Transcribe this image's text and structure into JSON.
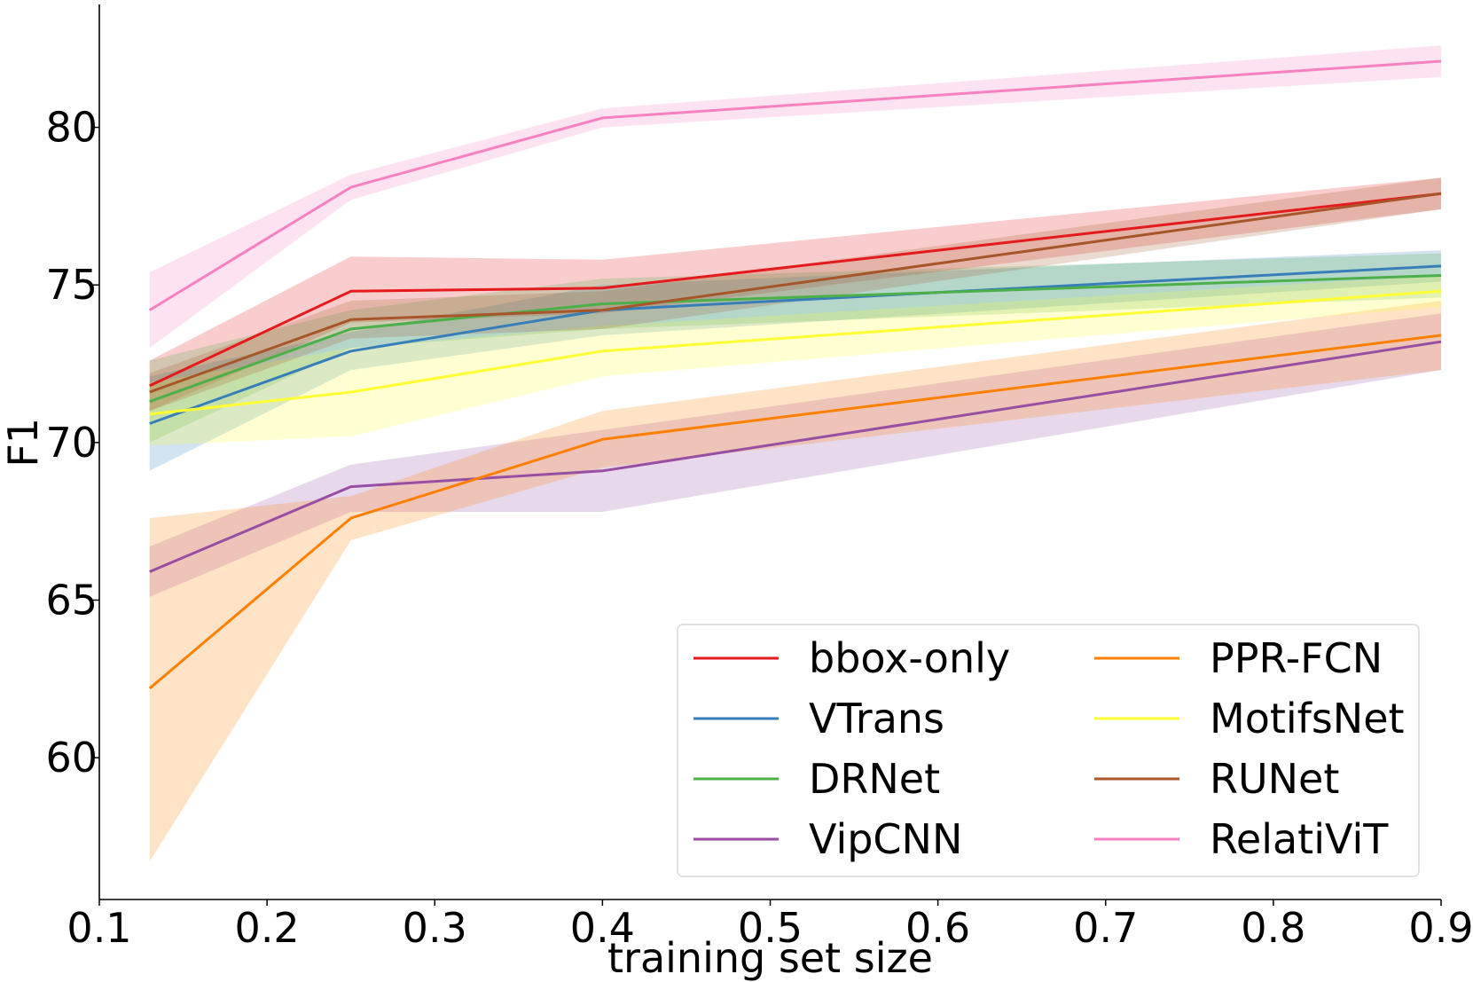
{
  "chart_data": {
    "type": "line",
    "title": "",
    "xlabel": "training set size",
    "ylabel": "F1",
    "xlim": [
      0.1,
      0.9
    ],
    "ylim": [
      55.5,
      83.9
    ],
    "x": [
      0.13,
      0.25,
      0.4,
      0.9
    ],
    "xticks": [
      {
        "value": 0.1,
        "label": "0.1"
      },
      {
        "value": 0.2,
        "label": "0.2"
      },
      {
        "value": 0.3,
        "label": "0.3"
      },
      {
        "value": 0.4,
        "label": "0.4"
      },
      {
        "value": 0.5,
        "label": "0.5"
      },
      {
        "value": 0.6,
        "label": "0.6"
      },
      {
        "value": 0.7,
        "label": "0.7"
      },
      {
        "value": 0.8,
        "label": "0.8"
      },
      {
        "value": 0.9,
        "label": "0.9"
      }
    ],
    "yticks": [
      {
        "value": 60,
        "label": "60"
      },
      {
        "value": 65,
        "label": "65"
      },
      {
        "value": 70,
        "label": "70"
      },
      {
        "value": 75,
        "label": "75"
      },
      {
        "value": 80,
        "label": "80"
      }
    ],
    "grid": false,
    "legend_position": "bottom-right",
    "legend_columns": 2,
    "series": [
      {
        "name": "bbox-only",
        "color": "#e41a1c",
        "values": [
          71.8,
          74.8,
          74.9,
          77.9
        ],
        "lower": [
          71.0,
          73.8,
          74.1,
          77.4
        ],
        "upper": [
          72.6,
          75.9,
          75.8,
          78.4
        ]
      },
      {
        "name": "VTrans",
        "color": "#377eb8",
        "values": [
          70.6,
          72.9,
          74.2,
          75.6
        ],
        "lower": [
          69.1,
          72.3,
          73.4,
          75.1
        ],
        "upper": [
          72.1,
          73.5,
          75.0,
          76.1
        ]
      },
      {
        "name": "DRNet",
        "color": "#4daf4a",
        "values": [
          71.3,
          73.6,
          74.4,
          75.3
        ],
        "lower": [
          70.0,
          73.0,
          73.6,
          74.6
        ],
        "upper": [
          72.6,
          74.2,
          75.2,
          76.0
        ]
      },
      {
        "name": "VipCNN",
        "color": "#984ea3",
        "values": [
          65.9,
          68.6,
          69.1,
          73.2
        ],
        "lower": [
          65.1,
          67.8,
          67.8,
          72.3
        ],
        "upper": [
          66.7,
          69.3,
          70.4,
          74.1
        ]
      },
      {
        "name": "PPR-FCN",
        "color": "#ff7f00",
        "values": [
          62.2,
          67.6,
          70.1,
          73.4
        ],
        "lower": [
          56.7,
          66.9,
          69.2,
          72.3
        ],
        "upper": [
          67.6,
          68.3,
          71.0,
          74.5
        ]
      },
      {
        "name": "MotifsNet",
        "color": "#ffff33",
        "values": [
          70.9,
          71.6,
          72.9,
          74.8
        ],
        "lower": [
          69.9,
          70.2,
          72.1,
          74.3
        ],
        "upper": [
          71.9,
          73.0,
          73.7,
          75.3
        ]
      },
      {
        "name": "RUNet",
        "color": "#a65628",
        "values": [
          71.6,
          73.9,
          74.2,
          77.9
        ],
        "lower": [
          71.0,
          73.3,
          73.6,
          77.4
        ],
        "upper": [
          72.2,
          74.5,
          74.8,
          78.4
        ]
      },
      {
        "name": "RelatiViT",
        "color": "#f781bf",
        "values": [
          74.2,
          78.1,
          80.3,
          82.1
        ],
        "lower": [
          73.0,
          77.7,
          80.0,
          81.6
        ],
        "upper": [
          75.4,
          78.5,
          80.6,
          82.6
        ]
      }
    ]
  }
}
